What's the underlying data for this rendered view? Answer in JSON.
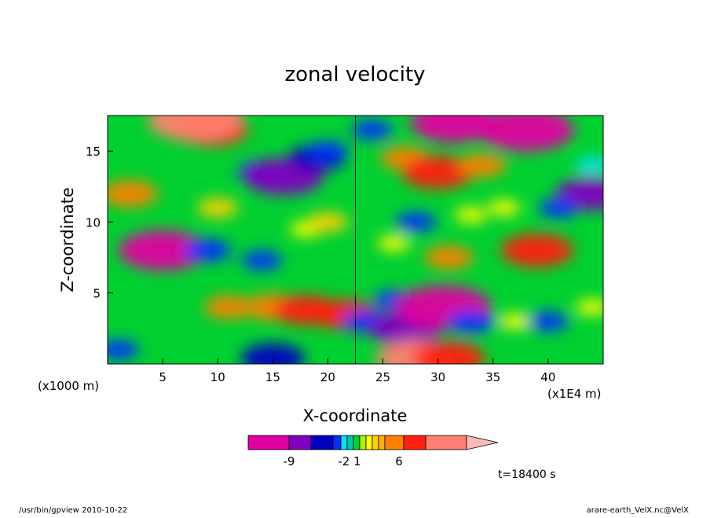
{
  "chart_data": {
    "type": "heatmap",
    "title": "zonal velocity",
    "xlabel": "X-coordinate",
    "ylabel": "Z-coordinate",
    "x_unit_left": "(x1000 m)",
    "x_unit_right": "(x1E4 m)",
    "xlim": [
      0,
      45
    ],
    "ylim": [
      0,
      17.5
    ],
    "x_ticks": [
      5,
      10,
      15,
      20,
      25,
      30,
      35,
      40
    ],
    "y_ticks": [
      5,
      10,
      15
    ],
    "colorbar": {
      "levels": [
        -9,
        -2,
        1,
        6
      ],
      "tick_labels": [
        "-9",
        "-2 1",
        "6"
      ],
      "colors": [
        "#e000a0",
        "#8000c0",
        "#0000c0",
        "#0030ff",
        "#00e0ff",
        "#00c8a0",
        "#00d030",
        "#b0f000",
        "#ffff00",
        "#ffd000",
        "#ffb000",
        "#ff8000",
        "#ff2010",
        "#ff8070",
        "#ffb8b8"
      ]
    },
    "time_label": "t=18400 s",
    "blobs": [
      {
        "x": 9.5,
        "z": 16.5,
        "v": 6
      },
      {
        "x": 8,
        "z": 17.2,
        "v": 9
      },
      {
        "x": 14,
        "z": 13.5,
        "v": -3
      },
      {
        "x": 16,
        "z": 13.2,
        "v": -7
      },
      {
        "x": 19,
        "z": 14.5,
        "v": -4
      },
      {
        "x": 10,
        "z": 11,
        "v": 2
      },
      {
        "x": 2,
        "z": 12,
        "v": 4
      },
      {
        "x": 5,
        "z": 8,
        "v": -8
      },
      {
        "x": 9,
        "z": 8,
        "v": -3
      },
      {
        "x": 14,
        "z": 7.3,
        "v": -2
      },
      {
        "x": 18,
        "z": 9.5,
        "v": 1
      },
      {
        "x": 20,
        "z": 10,
        "v": 2
      },
      {
        "x": 15,
        "z": 4,
        "v": 4
      },
      {
        "x": 18,
        "z": 3.8,
        "v": 5
      },
      {
        "x": 11,
        "z": 4,
        "v": 3
      },
      {
        "x": 1,
        "z": 1,
        "v": -2
      },
      {
        "x": 15,
        "z": 0.4,
        "v": -5
      },
      {
        "x": 21.5,
        "z": 3.5,
        "v": 5
      },
      {
        "x": 23.5,
        "z": 3,
        "v": -3
      },
      {
        "x": 26,
        "z": 4.5,
        "v": -2
      },
      {
        "x": 27,
        "z": 2.5,
        "v": -6
      },
      {
        "x": 30.5,
        "z": 4,
        "v": -9
      },
      {
        "x": 33,
        "z": 3,
        "v": -3
      },
      {
        "x": 28,
        "z": 0.4,
        "v": 7
      },
      {
        "x": 31,
        "z": 0.4,
        "v": 6
      },
      {
        "x": 37,
        "z": 3,
        "v": 1
      },
      {
        "x": 40,
        "z": 3,
        "v": -2
      },
      {
        "x": 27,
        "z": 14.5,
        "v": 3
      },
      {
        "x": 30,
        "z": 13.5,
        "v": 6
      },
      {
        "x": 34,
        "z": 14,
        "v": 3
      },
      {
        "x": 31.5,
        "z": 17,
        "v": -8
      },
      {
        "x": 38,
        "z": 16.5,
        "v": -9
      },
      {
        "x": 44,
        "z": 12,
        "v": -6
      },
      {
        "x": 41,
        "z": 11,
        "v": -2
      },
      {
        "x": 28,
        "z": 10,
        "v": -2
      },
      {
        "x": 33,
        "z": 10.5,
        "v": 1
      },
      {
        "x": 36,
        "z": 11,
        "v": 1
      },
      {
        "x": 39,
        "z": 8,
        "v": 6
      },
      {
        "x": 31,
        "z": 7.5,
        "v": 3
      },
      {
        "x": 26,
        "z": 8.5,
        "v": 1
      },
      {
        "x": 20,
        "z": 15,
        "v": -2
      },
      {
        "x": 24,
        "z": 16.5,
        "v": -2
      },
      {
        "x": 44,
        "z": 4,
        "v": 1
      },
      {
        "x": 44,
        "z": 14,
        "v": -1
      }
    ]
  },
  "footer_left": "/usr/bin/gpview  2010-10-22",
  "footer_right": "arare-earth_VelX.nc@VelX"
}
